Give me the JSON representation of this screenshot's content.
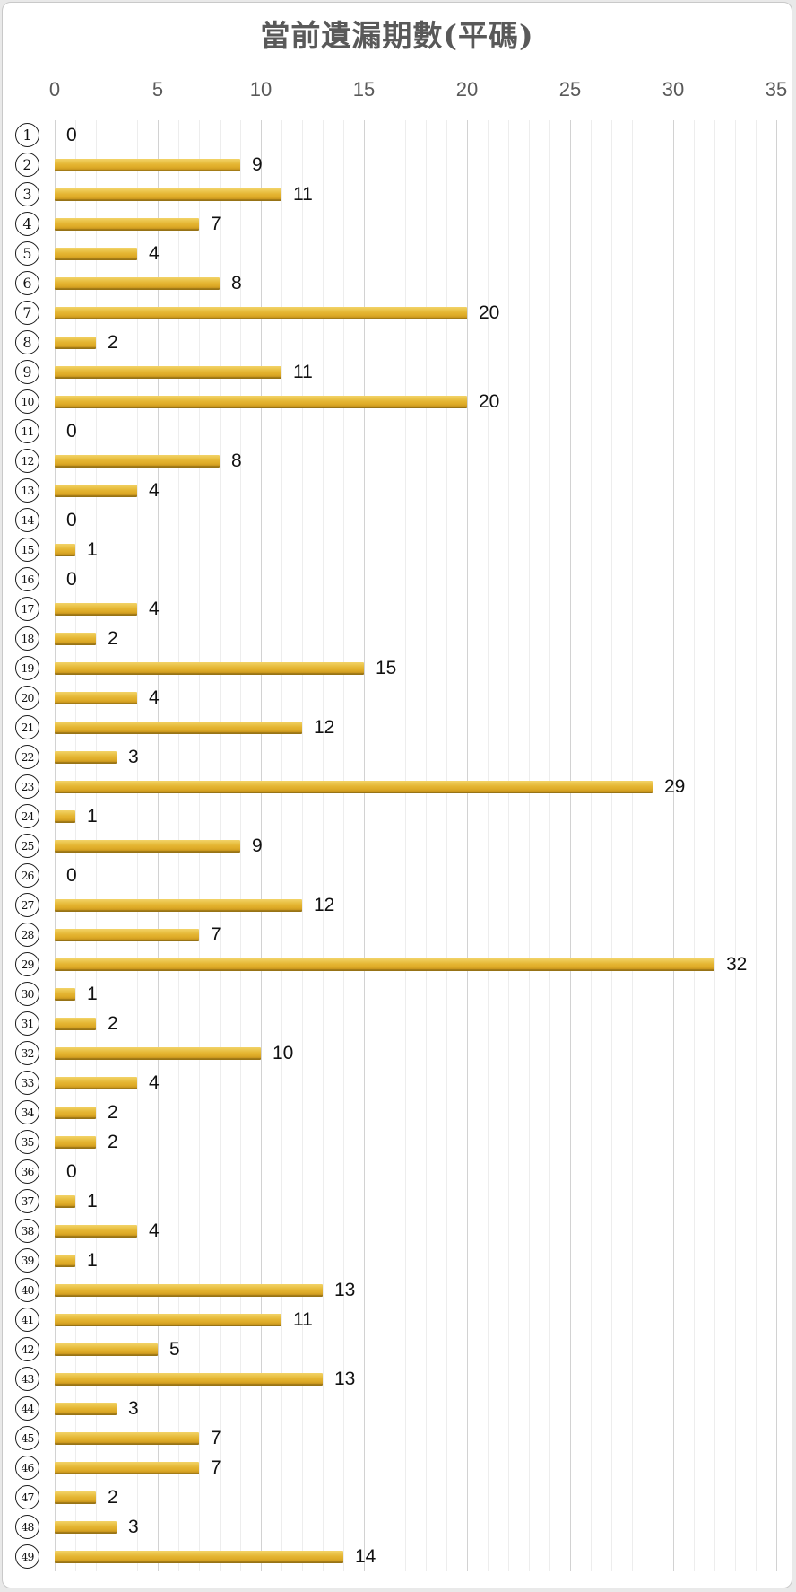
{
  "page": {
    "background_color": "#e9e9e9",
    "panel_background": "#ffffff",
    "panel_border_color": "#c9c9c9"
  },
  "chart_data": {
    "type": "bar",
    "orientation": "horizontal",
    "title": "當前遺漏期數(平碼)",
    "title_color": "#595959",
    "category_style": "circled-number",
    "categories": [
      1,
      2,
      3,
      4,
      5,
      6,
      7,
      8,
      9,
      10,
      11,
      12,
      13,
      14,
      15,
      16,
      17,
      18,
      19,
      20,
      21,
      22,
      23,
      24,
      25,
      26,
      27,
      28,
      29,
      30,
      31,
      32,
      33,
      34,
      35,
      36,
      37,
      38,
      39,
      40,
      41,
      42,
      43,
      44,
      45,
      46,
      47,
      48,
      49
    ],
    "values": [
      0,
      9,
      11,
      7,
      4,
      8,
      20,
      2,
      11,
      20,
      0,
      8,
      4,
      0,
      1,
      0,
      4,
      2,
      15,
      4,
      12,
      3,
      29,
      1,
      9,
      0,
      12,
      7,
      32,
      1,
      2,
      10,
      4,
      2,
      2,
      0,
      1,
      4,
      1,
      13,
      11,
      5,
      13,
      3,
      7,
      7,
      2,
      3,
      14
    ],
    "xlabel": "",
    "ylabel": "",
    "xlim": [
      0,
      35
    ],
    "x_ticks": [
      0,
      5,
      10,
      15,
      20,
      25,
      30,
      35
    ],
    "minor_grid_step": 1,
    "grid": true,
    "axis_position": "top",
    "legend": "none",
    "bar_color": "#e4b532",
    "bar_color_dark_edge": "#8e6c13",
    "axis_label_color": "#595959",
    "value_label_color": "#111111",
    "major_grid_color": "#d2d2d2",
    "minor_grid_color": "#ededed"
  }
}
